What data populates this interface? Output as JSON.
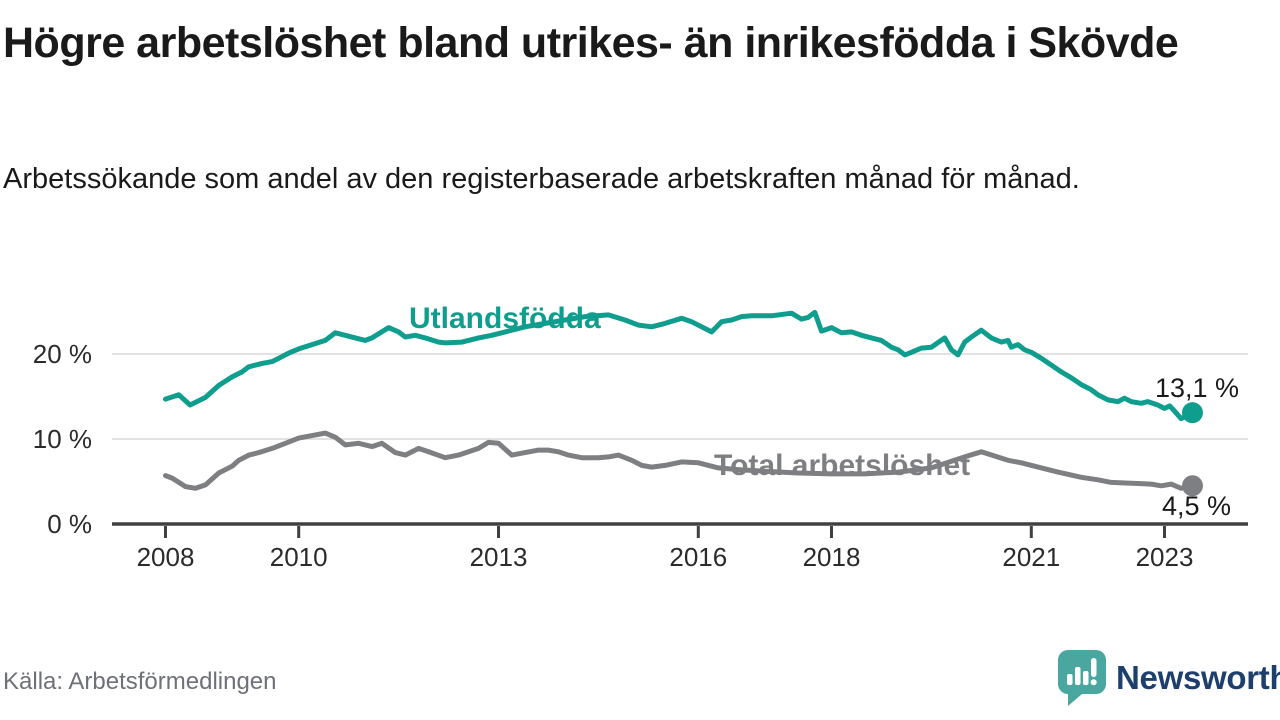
{
  "chart_data": {
    "type": "line",
    "title": "Högre arbetslöshet bland utrikes- än inrikesfödda i Skövde",
    "subtitle": "Arbetssökande som andel av den registerbaserade arbetskraften månad för månad.",
    "xlabel": "",
    "ylabel": "",
    "xlim": [
      2007.2,
      2024.25
    ],
    "ylim": [
      0,
      27
    ],
    "grid": "horizontal",
    "legend_position": "inline-labels",
    "grid_color": "#d9d9d9",
    "axis_color": "#404040",
    "tick_label_color": "#2b2b2b",
    "y_ticks": [
      {
        "value": 0,
        "label": "0 %"
      },
      {
        "value": 10,
        "label": "10 %"
      },
      {
        "value": 20,
        "label": "20 %"
      }
    ],
    "x_ticks": [
      {
        "year": 2008,
        "label": "2008"
      },
      {
        "year": 2010,
        "label": "2010"
      },
      {
        "year": 2013,
        "label": "2013"
      },
      {
        "year": 2016,
        "label": "2016"
      },
      {
        "year": 2018,
        "label": "2018"
      },
      {
        "year": 2021,
        "label": "2021"
      },
      {
        "year": 2023,
        "label": "2023"
      }
    ],
    "series": [
      {
        "name": "Utlandsfödda",
        "label": "Utlandsfödda",
        "color": "#0f9e8d",
        "end_label": "13,1 %",
        "end_value": 13.1,
        "points": [
          [
            2008.0,
            14.7
          ],
          [
            2008.2,
            15.2
          ],
          [
            2008.37,
            14.0
          ],
          [
            2008.6,
            14.9
          ],
          [
            2008.8,
            16.3
          ],
          [
            2009.0,
            17.3
          ],
          [
            2009.15,
            17.9
          ],
          [
            2009.25,
            18.5
          ],
          [
            2009.45,
            18.9
          ],
          [
            2009.6,
            19.1
          ],
          [
            2009.7,
            19.5
          ],
          [
            2009.85,
            20.1
          ],
          [
            2010.0,
            20.6
          ],
          [
            2010.2,
            21.1
          ],
          [
            2010.4,
            21.6
          ],
          [
            2010.55,
            22.5
          ],
          [
            2010.7,
            22.2
          ],
          [
            2010.85,
            21.9
          ],
          [
            2011.0,
            21.6
          ],
          [
            2011.1,
            21.9
          ],
          [
            2011.35,
            23.1
          ],
          [
            2011.5,
            22.6
          ],
          [
            2011.6,
            22.0
          ],
          [
            2011.75,
            22.2
          ],
          [
            2011.9,
            21.9
          ],
          [
            2012.1,
            21.4
          ],
          [
            2012.2,
            21.3
          ],
          [
            2012.45,
            21.4
          ],
          [
            2012.7,
            21.9
          ],
          [
            2012.9,
            22.2
          ],
          [
            2013.1,
            22.6
          ],
          [
            2013.4,
            23.2
          ],
          [
            2013.7,
            23.6
          ],
          [
            2014.0,
            24.0
          ],
          [
            2014.3,
            24.4
          ],
          [
            2014.65,
            24.6
          ],
          [
            2014.9,
            24.0
          ],
          [
            2015.1,
            23.4
          ],
          [
            2015.3,
            23.2
          ],
          [
            2015.5,
            23.6
          ],
          [
            2015.75,
            24.2
          ],
          [
            2015.9,
            23.8
          ],
          [
            2016.2,
            22.6
          ],
          [
            2016.35,
            23.8
          ],
          [
            2016.5,
            24.0
          ],
          [
            2016.65,
            24.4
          ],
          [
            2016.8,
            24.5
          ],
          [
            2017.1,
            24.5
          ],
          [
            2017.4,
            24.8
          ],
          [
            2017.55,
            24.1
          ],
          [
            2017.65,
            24.3
          ],
          [
            2017.75,
            24.9
          ],
          [
            2017.85,
            22.7
          ],
          [
            2018.0,
            23.1
          ],
          [
            2018.15,
            22.5
          ],
          [
            2018.3,
            22.6
          ],
          [
            2018.45,
            22.2
          ],
          [
            2018.6,
            21.9
          ],
          [
            2018.75,
            21.6
          ],
          [
            2018.9,
            20.8
          ],
          [
            2019.0,
            20.5
          ],
          [
            2019.1,
            19.9
          ],
          [
            2019.2,
            20.2
          ],
          [
            2019.35,
            20.7
          ],
          [
            2019.5,
            20.8
          ],
          [
            2019.7,
            21.9
          ],
          [
            2019.8,
            20.5
          ],
          [
            2019.9,
            19.9
          ],
          [
            2020.0,
            21.4
          ],
          [
            2020.1,
            22.0
          ],
          [
            2020.25,
            22.8
          ],
          [
            2020.4,
            21.9
          ],
          [
            2020.55,
            21.4
          ],
          [
            2020.65,
            21.6
          ],
          [
            2020.7,
            20.8
          ],
          [
            2020.8,
            21.1
          ],
          [
            2020.9,
            20.5
          ],
          [
            2021.0,
            20.2
          ],
          [
            2021.15,
            19.5
          ],
          [
            2021.3,
            18.7
          ],
          [
            2021.45,
            17.9
          ],
          [
            2021.6,
            17.2
          ],
          [
            2021.75,
            16.4
          ],
          [
            2021.9,
            15.8
          ],
          [
            2022.0,
            15.2
          ],
          [
            2022.15,
            14.6
          ],
          [
            2022.3,
            14.4
          ],
          [
            2022.4,
            14.8
          ],
          [
            2022.5,
            14.4
          ],
          [
            2022.65,
            14.2
          ],
          [
            2022.75,
            14.4
          ],
          [
            2022.9,
            14.0
          ],
          [
            2023.0,
            13.6
          ],
          [
            2023.08,
            13.9
          ],
          [
            2023.16,
            13.2
          ],
          [
            2023.25,
            12.4
          ],
          [
            2023.35,
            12.8
          ],
          [
            2023.42,
            13.1
          ]
        ]
      },
      {
        "name": "Total arbetslöshet",
        "label": "Total arbetslöshet",
        "color": "#7e7f83",
        "end_label": "4,5 %",
        "end_value": 4.5,
        "points": [
          [
            2008.0,
            5.7
          ],
          [
            2008.1,
            5.4
          ],
          [
            2008.3,
            4.4
          ],
          [
            2008.45,
            4.2
          ],
          [
            2008.6,
            4.6
          ],
          [
            2008.8,
            6.0
          ],
          [
            2009.0,
            6.8
          ],
          [
            2009.1,
            7.5
          ],
          [
            2009.25,
            8.1
          ],
          [
            2009.4,
            8.4
          ],
          [
            2009.6,
            8.9
          ],
          [
            2009.8,
            9.5
          ],
          [
            2010.0,
            10.1
          ],
          [
            2010.2,
            10.4
          ],
          [
            2010.4,
            10.7
          ],
          [
            2010.55,
            10.2
          ],
          [
            2010.7,
            9.3
          ],
          [
            2010.9,
            9.5
          ],
          [
            2011.1,
            9.1
          ],
          [
            2011.25,
            9.5
          ],
          [
            2011.45,
            8.4
          ],
          [
            2011.6,
            8.1
          ],
          [
            2011.8,
            8.9
          ],
          [
            2011.95,
            8.5
          ],
          [
            2012.2,
            7.8
          ],
          [
            2012.4,
            8.1
          ],
          [
            2012.7,
            8.9
          ],
          [
            2012.85,
            9.6
          ],
          [
            2013.0,
            9.5
          ],
          [
            2013.2,
            8.1
          ],
          [
            2013.4,
            8.4
          ],
          [
            2013.6,
            8.7
          ],
          [
            2013.75,
            8.7
          ],
          [
            2013.9,
            8.5
          ],
          [
            2014.05,
            8.1
          ],
          [
            2014.25,
            7.8
          ],
          [
            2014.5,
            7.8
          ],
          [
            2014.65,
            7.9
          ],
          [
            2014.8,
            8.1
          ],
          [
            2015.0,
            7.5
          ],
          [
            2015.15,
            6.9
          ],
          [
            2015.3,
            6.7
          ],
          [
            2015.5,
            6.9
          ],
          [
            2015.75,
            7.3
          ],
          [
            2016.0,
            7.2
          ],
          [
            2016.3,
            6.6
          ],
          [
            2016.6,
            6.4
          ],
          [
            2017.0,
            6.2
          ],
          [
            2017.5,
            6.0
          ],
          [
            2018.0,
            5.9
          ],
          [
            2018.5,
            5.9
          ],
          [
            2019.0,
            6.1
          ],
          [
            2019.5,
            6.6
          ],
          [
            2020.0,
            7.9
          ],
          [
            2020.25,
            8.5
          ],
          [
            2020.65,
            7.5
          ],
          [
            2020.85,
            7.2
          ],
          [
            2021.1,
            6.7
          ],
          [
            2021.4,
            6.1
          ],
          [
            2021.75,
            5.5
          ],
          [
            2022.0,
            5.2
          ],
          [
            2022.2,
            4.9
          ],
          [
            2022.5,
            4.8
          ],
          [
            2022.8,
            4.7
          ],
          [
            2022.95,
            4.5
          ],
          [
            2023.1,
            4.7
          ],
          [
            2023.25,
            4.2
          ],
          [
            2023.42,
            4.5
          ]
        ]
      }
    ]
  },
  "footer": {
    "source": "Källa: Arbetsförmedlingen",
    "logo_text": "Newsworthy",
    "logo_bubble_color": "#4aa7a0",
    "logo_text_color": "#1c3f6e"
  }
}
